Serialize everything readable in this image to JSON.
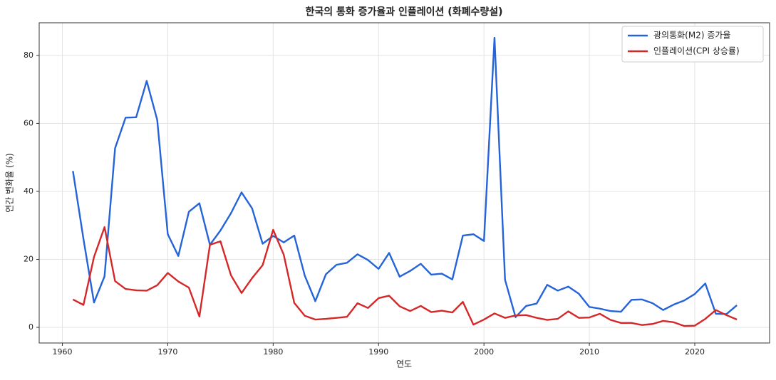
{
  "chart_data": {
    "type": "line",
    "title": "한국의 통화 증가율과 인플레이션 (화폐수량설)",
    "x_label": "연도",
    "y_label": "연간 변화율 (%)",
    "x": [
      1961,
      1962,
      1963,
      1964,
      1965,
      1966,
      1967,
      1968,
      1969,
      1970,
      1971,
      1972,
      1973,
      1974,
      1975,
      1976,
      1977,
      1978,
      1979,
      1980,
      1981,
      1982,
      1983,
      1984,
      1985,
      1986,
      1987,
      1988,
      1989,
      1990,
      1991,
      1992,
      1993,
      1994,
      1995,
      1996,
      1997,
      1998,
      1999,
      2000,
      2001,
      2002,
      2003,
      2004,
      2005,
      2006,
      2007,
      2008,
      2009,
      2010,
      2011,
      2012,
      2013,
      2014,
      2015,
      2016,
      2017,
      2018,
      2019,
      2020,
      2021,
      2022,
      2023,
      2024
    ],
    "series": [
      {
        "name": "광의통화(M2) 증가율",
        "color": "#2563d9",
        "values": [
          46,
          26,
          7.3,
          15,
          52.7,
          61.7,
          61.8,
          72.5,
          61,
          27.4,
          21,
          34,
          36.5,
          24.3,
          28.5,
          33.6,
          39.7,
          35,
          24.6,
          26.9,
          25,
          27,
          15.2,
          7.7,
          15.6,
          18.4,
          19,
          21.5,
          19.8,
          17.2,
          21.9,
          14.9,
          16.6,
          18.7,
          15.5,
          15.8,
          14.1,
          27,
          27.4,
          25.4,
          85.2,
          14,
          3,
          6.3,
          7,
          12.5,
          10.8,
          12,
          9.9,
          6,
          5.5,
          4.8,
          4.6,
          8.1,
          8.2,
          7.1,
          5.1,
          6.7,
          7.9,
          9.8,
          12.9,
          4,
          3.9,
          6.5
        ]
      },
      {
        "name": "인플레이션(CPI 상승률)",
        "color": "#d62728",
        "values": [
          8.2,
          6.6,
          20.7,
          29.5,
          13.6,
          11.3,
          10.9,
          10.8,
          12.4,
          16,
          13.5,
          11.7,
          3.2,
          24.3,
          25.3,
          15.3,
          10.1,
          14.5,
          18.3,
          28.7,
          21.4,
          7.2,
          3.4,
          2.3,
          2.5,
          2.8,
          3.1,
          7.1,
          5.7,
          8.6,
          9.3,
          6.2,
          4.8,
          6.3,
          4.5,
          4.9,
          4.4,
          7.5,
          0.8,
          2.3,
          4.1,
          2.8,
          3.5,
          3.6,
          2.8,
          2.2,
          2.5,
          4.7,
          2.8,
          2.9,
          4,
          2.2,
          1.3,
          1.3,
          0.7,
          1,
          1.9,
          1.5,
          0.4,
          0.5,
          2.5,
          5.1,
          3.6,
          2.3
        ]
      }
    ],
    "xlim": [
      1957.8,
      2027.1
    ],
    "ylim": [
      -4.6,
      89.6
    ],
    "xticks": [
      1960,
      1970,
      1980,
      1990,
      2000,
      2010,
      2020
    ],
    "yticks": [
      0,
      20,
      40,
      60,
      80
    ],
    "grid": true,
    "legend": "upper right"
  }
}
